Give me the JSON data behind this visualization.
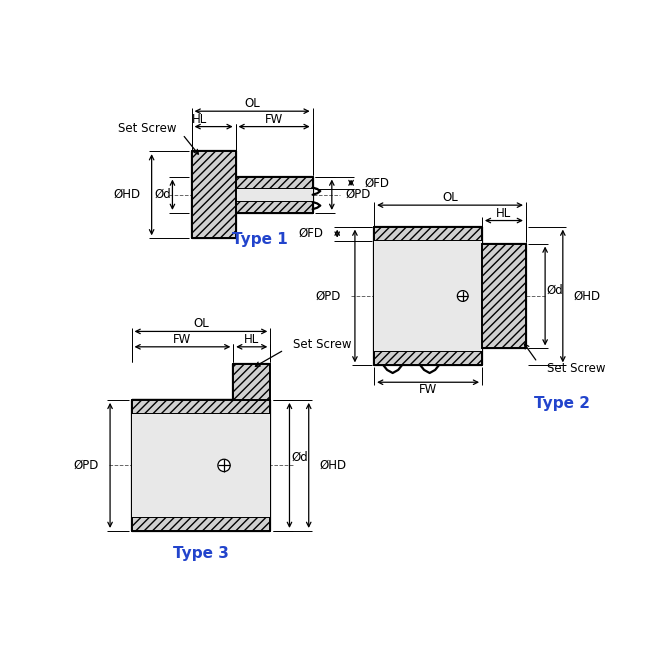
{
  "bg_color": "#ffffff",
  "line_color": "#000000",
  "fill_color": "#d0d0d0",
  "fill_light": "#e8e8e8",
  "dim_color": "#000000",
  "label_color": "#2244cc",
  "type1_label": "Type 1",
  "type2_label": "Type 2",
  "type3_label": "Type 3",
  "font_size": 8.5,
  "font_size_type": 11,
  "lw_main": 1.6,
  "lw_dim": 0.9,
  "lw_thin": 0.7
}
